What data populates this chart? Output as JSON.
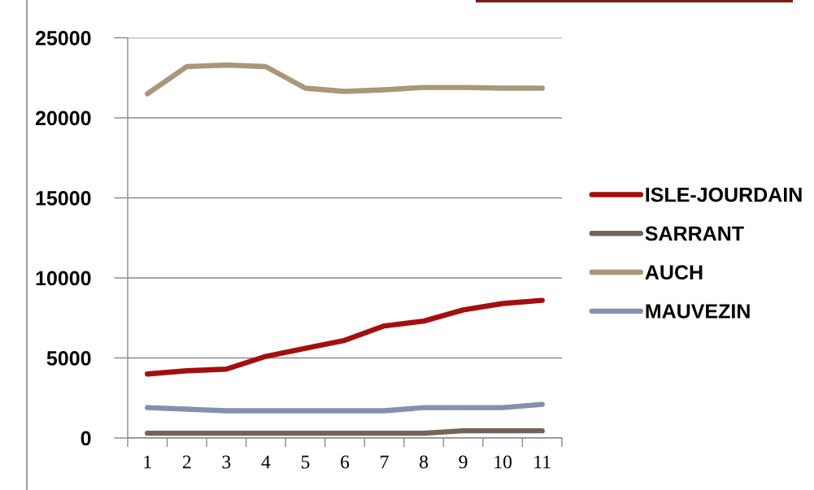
{
  "chart_data": {
    "type": "line",
    "categories": [
      "1",
      "2",
      "3",
      "4",
      "5",
      "6",
      "7",
      "8",
      "9",
      "10",
      "11"
    ],
    "series": [
      {
        "name": "ISLE-JOURDAIN",
        "color": "#a30f0f",
        "values": [
          4000,
          4200,
          4300,
          5100,
          5600,
          6100,
          7000,
          7300,
          8000,
          8400,
          8600
        ]
      },
      {
        "name": "SARRANT",
        "color": "#71645b",
        "values": [
          300,
          300,
          300,
          300,
          300,
          300,
          300,
          300,
          450,
          450,
          450
        ]
      },
      {
        "name": "AUCH",
        "color": "#a8977a",
        "values": [
          21500,
          23200,
          23300,
          23200,
          21850,
          21650,
          21750,
          21900,
          21900,
          21850,
          21850
        ]
      },
      {
        "name": "MAUVEZIN",
        "color": "#8491ad",
        "values": [
          1900,
          1800,
          1700,
          1700,
          1700,
          1700,
          1700,
          1900,
          1900,
          1900,
          2100
        ]
      }
    ],
    "ylim": [
      0,
      25000
    ],
    "yticks": [
      0,
      5000,
      10000,
      15000,
      20000,
      25000
    ],
    "grid": "y",
    "legend": "right",
    "line_style": "solid"
  }
}
